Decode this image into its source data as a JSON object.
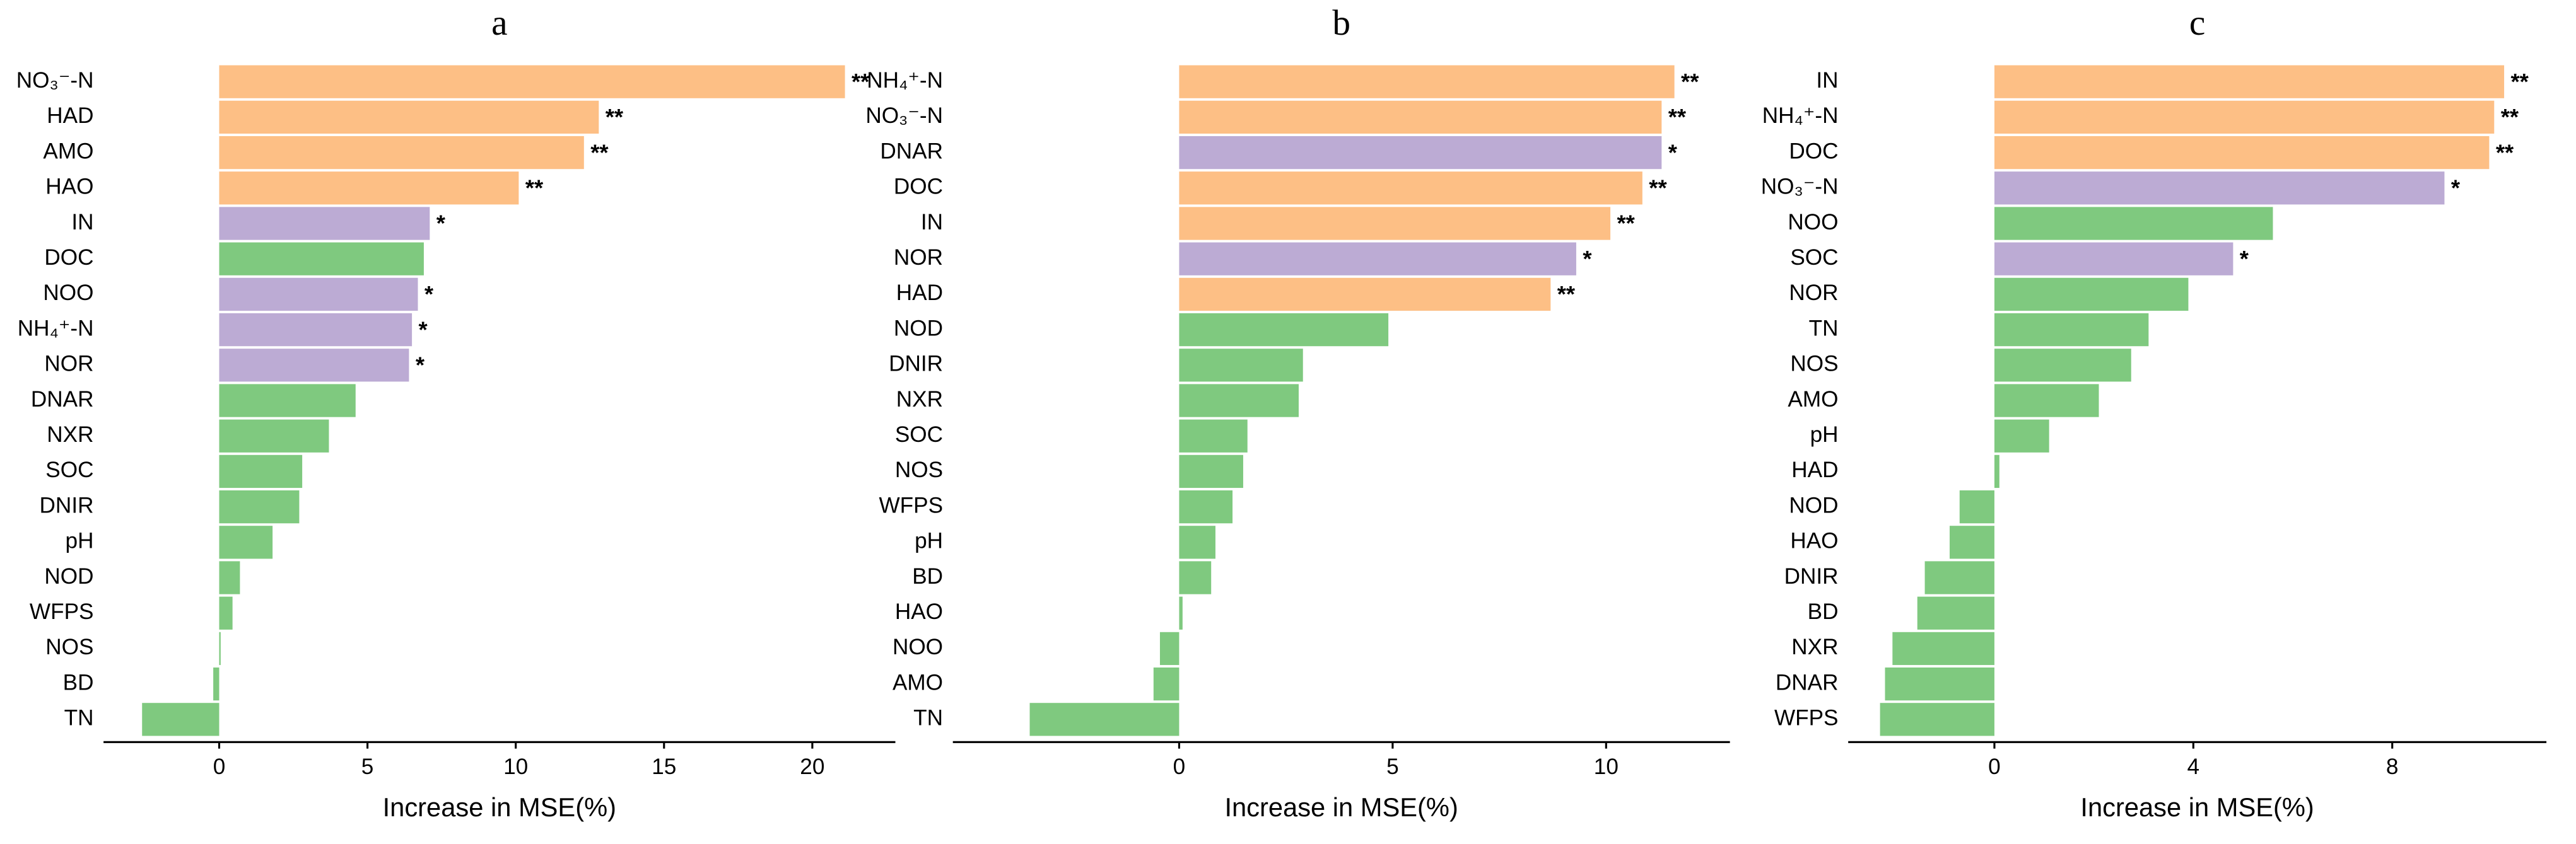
{
  "chart_data": [
    {
      "type": "barh",
      "title": "a",
      "xlabel": "Increase in MSE(%)",
      "categories": [
        "NO₃⁻-N",
        "HAD",
        "AMO",
        "HAO",
        "IN",
        "DOC",
        "NOO",
        "NH₄⁺-N",
        "NOR",
        "DNAR",
        "NXR",
        "SOC",
        "DNIR",
        "pH",
        "NOD",
        "WFPS",
        "NOS",
        "BD",
        "TN"
      ],
      "values": [
        21.1,
        12.8,
        12.3,
        10.1,
        7.1,
        6.9,
        6.7,
        6.5,
        6.4,
        4.6,
        3.7,
        2.8,
        2.7,
        1.8,
        0.7,
        0.45,
        0.05,
        -0.2,
        -2.6
      ],
      "colors": [
        "#FDBF85",
        "#FDBF85",
        "#FDBF85",
        "#FDBF85",
        "#BCABD4",
        "#7FC97F",
        "#BCABD4",
        "#BCABD4",
        "#BCABD4",
        "#7FC97F",
        "#7FC97F",
        "#7FC97F",
        "#7FC97F",
        "#7FC97F",
        "#7FC97F",
        "#7FC97F",
        "#7FC97F",
        "#7FC97F",
        "#7FC97F"
      ],
      "significance": [
        "**",
        "**",
        "**",
        "**",
        "*",
        null,
        "*",
        "*",
        "*",
        null,
        null,
        null,
        null,
        null,
        null,
        null,
        null,
        null,
        null
      ],
      "xlim": [
        -3.9,
        22.8
      ],
      "xticks": [
        0,
        5,
        10,
        15,
        20
      ],
      "grid": false
    },
    {
      "type": "barh",
      "title": "b",
      "xlabel": "Increase in MSE(%)",
      "categories": [
        "NH₄⁺-N",
        "NO₃⁻-N",
        "DNAR",
        "DOC",
        "IN",
        "NOR",
        "HAD",
        "NOD",
        "DNIR",
        "NXR",
        "SOC",
        "NOS",
        "WFPS",
        "pH",
        "BD",
        "HAO",
        "NOO",
        "AMO",
        "TN"
      ],
      "values": [
        11.6,
        11.3,
        11.3,
        10.85,
        10.1,
        9.3,
        8.7,
        4.9,
        2.9,
        2.8,
        1.6,
        1.5,
        1.25,
        0.85,
        0.75,
        0.08,
        -0.45,
        -0.6,
        -3.5
      ],
      "colors": [
        "#FDBF85",
        "#FDBF85",
        "#BCABD4",
        "#FDBF85",
        "#FDBF85",
        "#BCABD4",
        "#FDBF85",
        "#7FC97F",
        "#7FC97F",
        "#7FC97F",
        "#7FC97F",
        "#7FC97F",
        "#7FC97F",
        "#7FC97F",
        "#7FC97F",
        "#7FC97F",
        "#7FC97F",
        "#7FC97F",
        "#7FC97F"
      ],
      "significance": [
        "**",
        "**",
        "*",
        "**",
        "**",
        "*",
        "**",
        null,
        null,
        null,
        null,
        null,
        null,
        null,
        null,
        null,
        null,
        null,
        null
      ],
      "xlim": [
        -5.3,
        12.9
      ],
      "xticks": [
        0,
        5,
        10
      ],
      "grid": false
    },
    {
      "type": "barh",
      "title": "c",
      "xlabel": "Increase in MSE(%)",
      "categories": [
        "IN",
        "NH₄⁺-N",
        "DOC",
        "NO₃⁻-N",
        "NOO",
        "SOC",
        "NOR",
        "TN",
        "NOS",
        "AMO",
        "pH",
        "HAD",
        "NOD",
        "HAO",
        "DNIR",
        "BD",
        "NXR",
        "DNAR",
        "WFPS"
      ],
      "values": [
        10.25,
        10.05,
        9.95,
        9.05,
        5.6,
        4.8,
        3.9,
        3.1,
        2.75,
        2.1,
        1.1,
        0.1,
        -0.7,
        -0.9,
        -1.4,
        -1.55,
        -2.05,
        -2.2,
        -2.3
      ],
      "colors": [
        "#FDBF85",
        "#FDBF85",
        "#FDBF85",
        "#BCABD4",
        "#7FC97F",
        "#BCABD4",
        "#7FC97F",
        "#7FC97F",
        "#7FC97F",
        "#7FC97F",
        "#7FC97F",
        "#7FC97F",
        "#7FC97F",
        "#7FC97F",
        "#7FC97F",
        "#7FC97F",
        "#7FC97F",
        "#7FC97F",
        "#7FC97F"
      ],
      "significance": [
        "**",
        "**",
        "**",
        "*",
        null,
        "*",
        null,
        null,
        null,
        null,
        null,
        null,
        null,
        null,
        null,
        null,
        null,
        null,
        null
      ],
      "xlim": [
        -2.94,
        11.1
      ],
      "xticks": [
        0,
        4,
        8
      ],
      "grid": false
    }
  ]
}
